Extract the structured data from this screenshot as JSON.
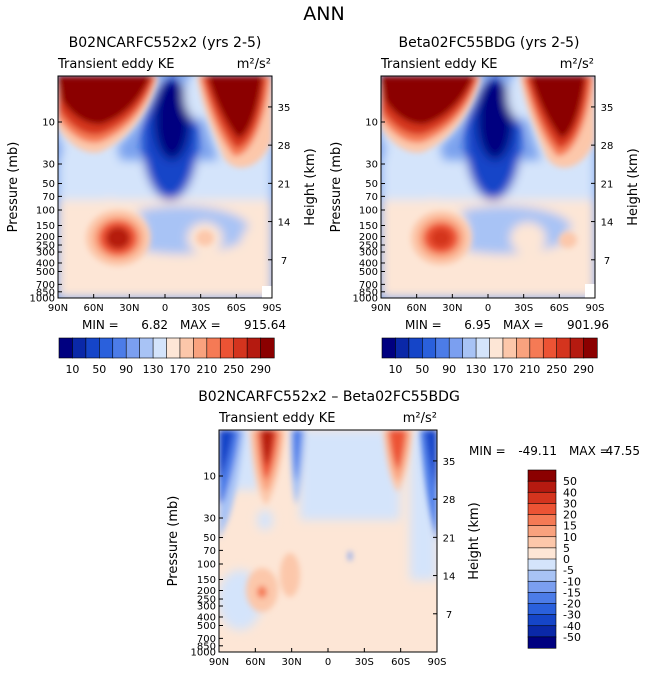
{
  "page_title": "ANN",
  "colors": {
    "blue_ramp": [
      "#000080",
      "#0a28a8",
      "#1545c8",
      "#2a60dc",
      "#4c7ce8",
      "#7b9ff0",
      "#a8c3f5",
      "#d4e4fb"
    ],
    "red_ramp": [
      "#fde6d6",
      "#fcc7aa",
      "#f9a27e",
      "#f57a55",
      "#ec5334",
      "#d4341e",
      "#b51a10",
      "#8b0000"
    ],
    "diff_blues": [
      "#000080",
      "#0a28a8",
      "#1545c8",
      "#2a60dc",
      "#4c7ce8",
      "#7b9ff0",
      "#a8c3f5",
      "#d4e4fb"
    ],
    "diff_reds": [
      "#fde6d6",
      "#fcc7aa",
      "#f9a27e",
      "#f57a55",
      "#ec5334",
      "#d4341e",
      "#b51a10",
      "#8b0000"
    ]
  },
  "chart_data": [
    {
      "type": "heatmap",
      "title": "B02NCARFC552x2 (yrs 2-5)",
      "subtitle": "Transient eddy KE",
      "units": "m²/s²",
      "ylabel": "Pressure (mb)",
      "ylabel_right": "Height (km)",
      "x_ticks": [
        "90N",
        "60N",
        "30N",
        "0",
        "30S",
        "60S",
        "90S"
      ],
      "y_ticks": [
        "10",
        "30",
        "50",
        "70",
        "100",
        "150",
        "200",
        "250",
        "300",
        "400",
        "500",
        "700",
        "850",
        "1000"
      ],
      "height_ticks": [
        "35",
        "28",
        "21",
        "14",
        "7"
      ],
      "min_label": "MIN =",
      "min_value": "6.82",
      "max_label": "MAX =",
      "max_value": "915.64",
      "colorbar_labels": [
        "10",
        "50",
        "90",
        "130",
        "170",
        "210",
        "250",
        "290"
      ],
      "colorbar_levels": [
        10,
        30,
        50,
        70,
        90,
        110,
        130,
        150,
        170,
        190,
        210,
        230,
        250,
        270,
        290
      ],
      "ylim": [
        1000,
        3
      ],
      "xlim": [
        "90N",
        "90S"
      ]
    },
    {
      "type": "heatmap",
      "title": "Beta02FC55BDG (yrs 2-5)",
      "subtitle": "Transient eddy KE",
      "units": "m²/s²",
      "ylabel": "Pressure (mb)",
      "ylabel_right": "Height (km)",
      "x_ticks": [
        "90N",
        "60N",
        "30N",
        "0",
        "30S",
        "60S",
        "90S"
      ],
      "y_ticks": [
        "10",
        "30",
        "50",
        "70",
        "100",
        "150",
        "200",
        "250",
        "300",
        "400",
        "500",
        "700",
        "850",
        "1000"
      ],
      "height_ticks": [
        "35",
        "28",
        "21",
        "14",
        "7"
      ],
      "min_label": "MIN =",
      "min_value": "6.95",
      "max_label": "MAX =",
      "max_value": "901.96",
      "colorbar_labels": [
        "10",
        "50",
        "90",
        "130",
        "170",
        "210",
        "250",
        "290"
      ],
      "colorbar_levels": [
        10,
        30,
        50,
        70,
        90,
        110,
        130,
        150,
        170,
        190,
        210,
        230,
        250,
        270,
        290
      ],
      "ylim": [
        1000,
        3
      ],
      "xlim": [
        "90N",
        "90S"
      ]
    },
    {
      "type": "heatmap",
      "title": "B02NCARFC552x2 – Beta02FC55BDG",
      "subtitle": "Transient eddy KE",
      "units": "m²/s²",
      "ylabel": "Pressure (mb)",
      "ylabel_right": "Height (km)",
      "x_ticks": [
        "90N",
        "60N",
        "30N",
        "0",
        "30S",
        "60S",
        "90S"
      ],
      "y_ticks": [
        "10",
        "30",
        "50",
        "70",
        "100",
        "150",
        "200",
        "250",
        "300",
        "400",
        "500",
        "700",
        "850",
        "1000"
      ],
      "height_ticks": [
        "35",
        "28",
        "21",
        "14",
        "7"
      ],
      "min_label": "MIN =",
      "min_value": "-49.11",
      "max_label": "MAX =",
      "max_value": "47.55",
      "colorbar_labels": [
        "50",
        "40",
        "30",
        "20",
        "15",
        "10",
        "5",
        "0",
        "-5",
        "-10",
        "-15",
        "-20",
        "-30",
        "-40",
        "-50"
      ],
      "ylim": [
        1000,
        3
      ],
      "xlim": [
        "90N",
        "90S"
      ]
    }
  ]
}
